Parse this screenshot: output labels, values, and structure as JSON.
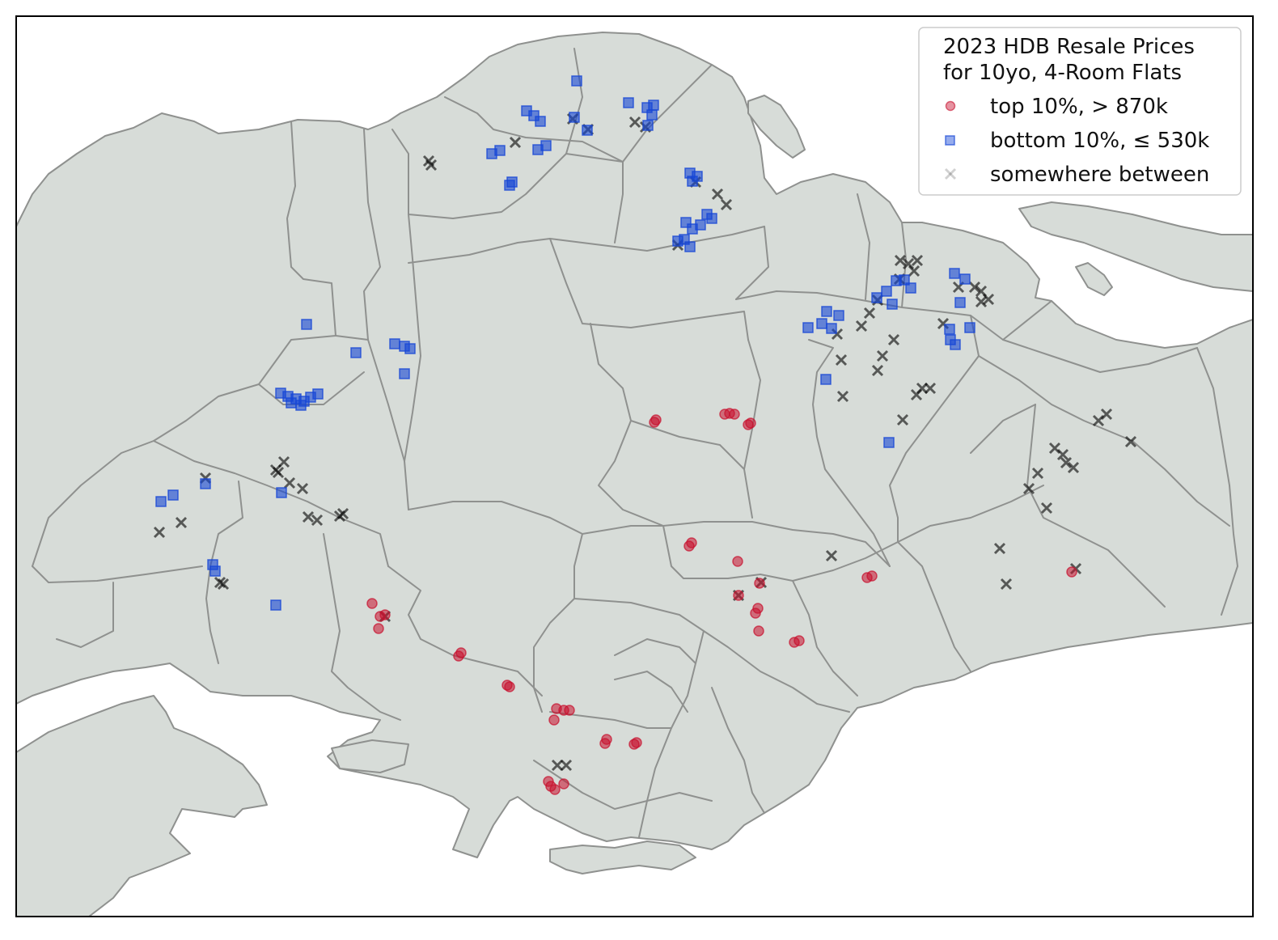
{
  "legend": {
    "title_line1": "2023 HDB Resale Prices",
    "title_line2": "for 10yo, 4-Room Flats",
    "entries": [
      {
        "label": "top 10%, > 870k",
        "marker": "circle",
        "color": "#c8102e"
      },
      {
        "label": "bottom 10%, ≤ 530k",
        "marker": "square",
        "color": "#1646d6"
      },
      {
        "label": "somewhere between",
        "marker": "x",
        "color": "#000000"
      }
    ]
  },
  "colors": {
    "land": "#d7dcd8",
    "boundary": "#8f918f",
    "sea": "#ffffff",
    "frame": "#000000"
  },
  "chart_data": {
    "type": "scatter",
    "title": "",
    "xlabel": "",
    "ylabel": "",
    "grid": false,
    "legend_position": "top-right",
    "series": [
      {
        "name": "top 10%, > 870k",
        "marker": "circle",
        "color": "#c8102e",
        "points": [
          [
            809,
            522
          ],
          [
            811,
            519
          ],
          [
            896,
            512
          ],
          [
            902,
            511
          ],
          [
            908,
            512
          ],
          [
            925,
            525
          ],
          [
            928,
            523
          ],
          [
            852,
            675
          ],
          [
            855,
            671
          ],
          [
            912,
            694
          ],
          [
            460,
            746
          ],
          [
            470,
            762
          ],
          [
            476,
            760
          ],
          [
            468,
            777
          ],
          [
            567,
            811
          ],
          [
            570,
            807
          ],
          [
            627,
            847
          ],
          [
            630,
            849
          ],
          [
            688,
            876
          ],
          [
            697,
            878
          ],
          [
            704,
            878
          ],
          [
            685,
            890
          ],
          [
            748,
            919
          ],
          [
            750,
            914
          ],
          [
            784,
            920
          ],
          [
            787,
            918
          ],
          [
            678,
            966
          ],
          [
            681,
            972
          ],
          [
            686,
            976
          ],
          [
            697,
            969
          ],
          [
            939,
            721
          ],
          [
            913,
            736
          ],
          [
            937,
            752
          ],
          [
            934,
            758
          ],
          [
            938,
            780
          ],
          [
            982,
            794
          ],
          [
            988,
            792
          ],
          [
            1072,
            714
          ],
          [
            1078,
            712
          ],
          [
            1325,
            707
          ]
        ]
      },
      {
        "name": "bottom 10%, ≤ 530k",
        "marker": "square",
        "color": "#1646d6",
        "points": [
          [
            713,
            100
          ],
          [
            651,
            137
          ],
          [
            660,
            143
          ],
          [
            668,
            150
          ],
          [
            710,
            145
          ],
          [
            726,
            161
          ],
          [
            777,
            127
          ],
          [
            800,
            133
          ],
          [
            806,
            142
          ],
          [
            801,
            155
          ],
          [
            808,
            130
          ],
          [
            608,
            190
          ],
          [
            618,
            186
          ],
          [
            665,
            185
          ],
          [
            675,
            180
          ],
          [
            633,
            225
          ],
          [
            630,
            229
          ],
          [
            853,
            214
          ],
          [
            862,
            218
          ],
          [
            856,
            224
          ],
          [
            848,
            275
          ],
          [
            856,
            283
          ],
          [
            866,
            278
          ],
          [
            874,
            265
          ],
          [
            880,
            270
          ],
          [
            838,
            298
          ],
          [
            846,
            296
          ],
          [
            853,
            305
          ],
          [
            379,
            401
          ],
          [
            488,
            425
          ],
          [
            500,
            428
          ],
          [
            507,
            431
          ],
          [
            440,
            436
          ],
          [
            500,
            462
          ],
          [
            347,
            486
          ],
          [
            356,
            490
          ],
          [
            366,
            493
          ],
          [
            376,
            496
          ],
          [
            384,
            491
          ],
          [
            393,
            487
          ],
          [
            372,
            501
          ],
          [
            360,
            498
          ],
          [
            199,
            620
          ],
          [
            214,
            612
          ],
          [
            254,
            598
          ],
          [
            348,
            609
          ],
          [
            263,
            698
          ],
          [
            266,
            706
          ],
          [
            341,
            748
          ],
          [
            999,
            405
          ],
          [
            1016,
            400
          ],
          [
            1022,
            385
          ],
          [
            1037,
            390
          ],
          [
            1028,
            406
          ],
          [
            1021,
            469
          ],
          [
            1084,
            368
          ],
          [
            1096,
            360
          ],
          [
            1108,
            347
          ],
          [
            1118,
            346
          ],
          [
            1126,
            356
          ],
          [
            1103,
            376
          ],
          [
            1180,
            338
          ],
          [
            1193,
            345
          ],
          [
            1174,
            407
          ],
          [
            1199,
            405
          ],
          [
            1187,
            374
          ],
          [
            1175,
            420
          ],
          [
            1181,
            426
          ],
          [
            1099,
            547
          ]
        ]
      },
      {
        "name": "somewhere between",
        "marker": "x",
        "color": "#000000",
        "points": [
          [
            530,
            199
          ],
          [
            533,
            204
          ],
          [
            637,
            176
          ],
          [
            708,
            147
          ],
          [
            727,
            160
          ],
          [
            785,
            151
          ],
          [
            798,
            157
          ],
          [
            887,
            240
          ],
          [
            898,
            253
          ],
          [
            860,
            225
          ],
          [
            838,
            303
          ],
          [
            254,
            591
          ],
          [
            341,
            581
          ],
          [
            351,
            571
          ],
          [
            358,
            597
          ],
          [
            374,
            604
          ],
          [
            344,
            584
          ],
          [
            424,
            635
          ],
          [
            420,
            638
          ],
          [
            381,
            639
          ],
          [
            392,
            643
          ],
          [
            224,
            646
          ],
          [
            197,
            658
          ],
          [
            272,
            720
          ],
          [
            276,
            722
          ],
          [
            1028,
            687
          ],
          [
            941,
            720
          ],
          [
            913,
            736
          ],
          [
            476,
            762
          ],
          [
            689,
            946
          ],
          [
            700,
            946
          ],
          [
            1113,
            322
          ],
          [
            1123,
            326
          ],
          [
            1134,
            322
          ],
          [
            1130,
            335
          ],
          [
            1112,
            345
          ],
          [
            1085,
            371
          ],
          [
            1075,
            387
          ],
          [
            1065,
            403
          ],
          [
            1035,
            413
          ],
          [
            1105,
            420
          ],
          [
            1091,
            440
          ],
          [
            1085,
            458
          ],
          [
            1040,
            445
          ],
          [
            1042,
            490
          ],
          [
            1140,
            480
          ],
          [
            1133,
            488
          ],
          [
            1150,
            480
          ],
          [
            1116,
            519
          ],
          [
            1205,
            355
          ],
          [
            1213,
            360
          ],
          [
            1222,
            370
          ],
          [
            1166,
            400
          ],
          [
            1358,
            520
          ],
          [
            1368,
            512
          ],
          [
            1398,
            546
          ],
          [
            1304,
            554
          ],
          [
            1314,
            562
          ],
          [
            1318,
            572
          ],
          [
            1327,
            578
          ],
          [
            1283,
            585
          ],
          [
            1272,
            604
          ],
          [
            1294,
            628
          ],
          [
            1236,
            678
          ],
          [
            1244,
            722
          ],
          [
            1330,
            703
          ],
          [
            1213,
            373
          ],
          [
            1185,
            355
          ]
        ]
      }
    ]
  }
}
